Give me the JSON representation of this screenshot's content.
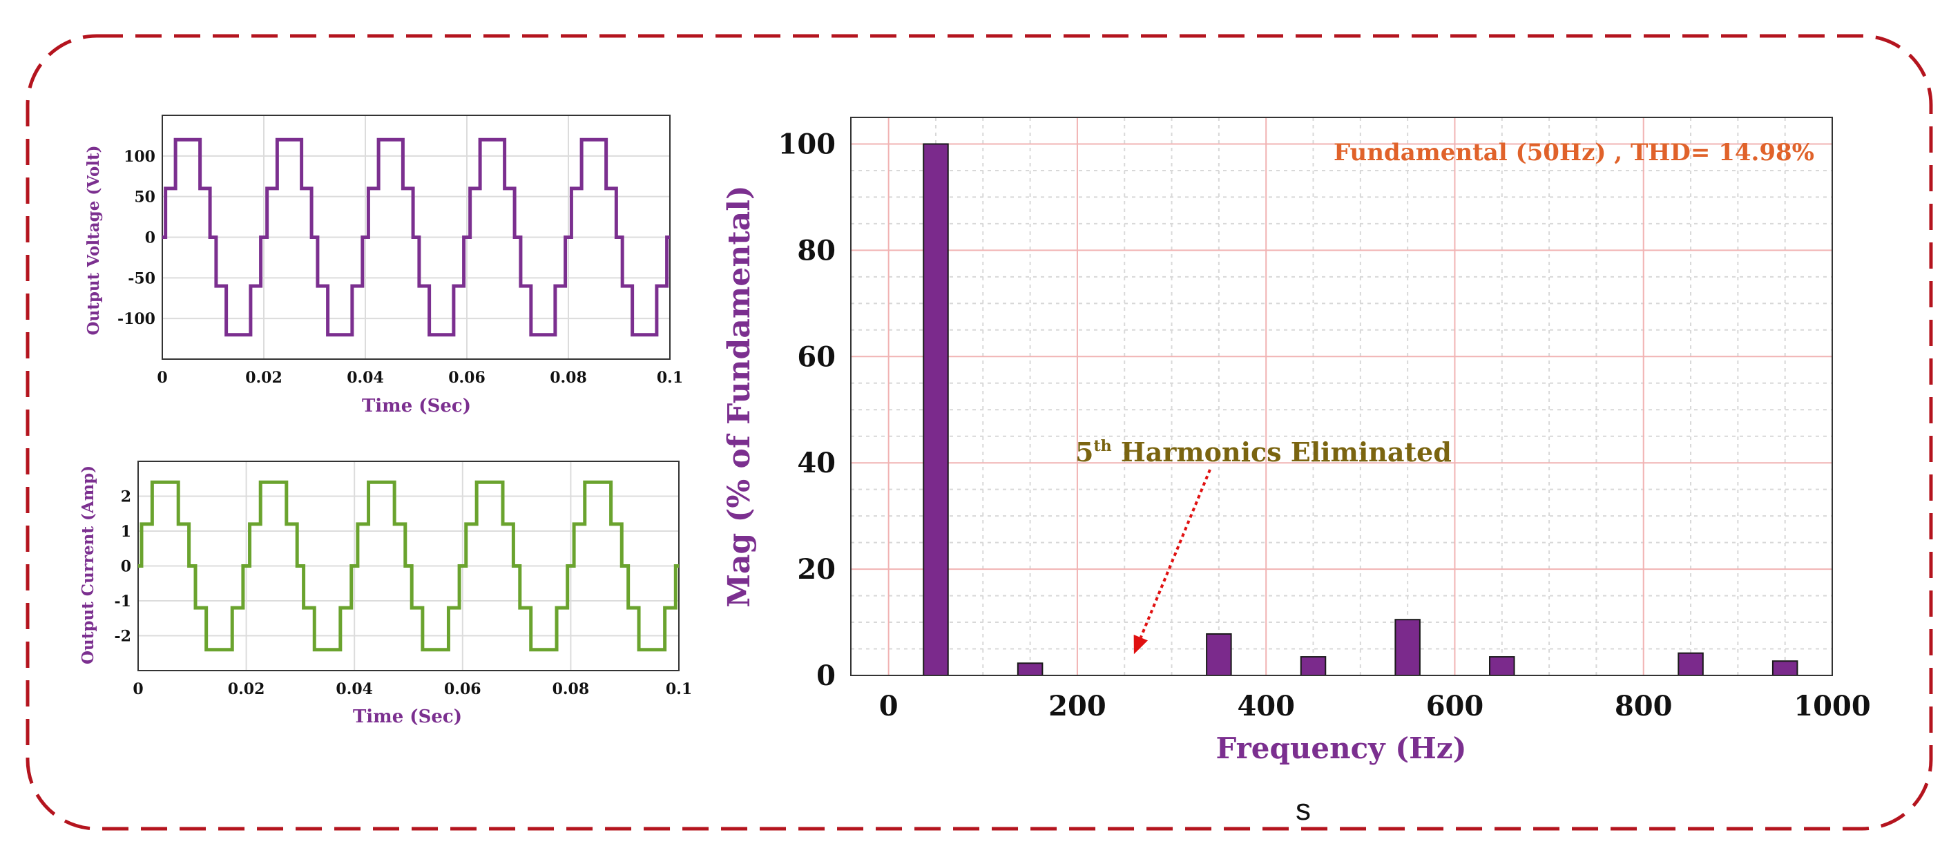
{
  "colors": {
    "frame": "#b4141e",
    "voltage": "#7b2f8f",
    "current": "#6aa32e",
    "bar_fill": "#7b2a8c",
    "axis_label": "#7b2f8f",
    "fundamental_text": "#e0622a",
    "annotation_text": "#7a6410",
    "arrow": "#e01010",
    "grid_major": "#f1b3b3",
    "grid_minor": "#d8d8d8"
  },
  "stray_text": "s",
  "chart_data": [
    {
      "id": "voltage",
      "type": "line",
      "xlabel": "Time (Sec)",
      "ylabel": "Output Voltage (Volt)",
      "xlim": [
        0,
        0.1
      ],
      "ylim": [
        -150,
        150
      ],
      "xticks": [
        0,
        0.02,
        0.04,
        0.06,
        0.08,
        0.1
      ],
      "xtick_labels": [
        "0",
        "0.02",
        "0.04",
        "0.06",
        "0.08",
        "0.1"
      ],
      "yticks": [
        100,
        50,
        0,
        -50,
        -100
      ],
      "ytick_labels": [
        "100",
        "50",
        "0",
        "-50",
        "-100"
      ],
      "waveform": {
        "period": 0.02,
        "cycles": 5,
        "levels": [
          0,
          60,
          120
        ],
        "switching_fraction": [
          0.06,
          0.26
        ]
      }
    },
    {
      "id": "current",
      "type": "line",
      "xlabel": "Time (Sec)",
      "ylabel": "Output Current (Amp)",
      "xlim": [
        0,
        0.1
      ],
      "ylim": [
        -3,
        3
      ],
      "xticks": [
        0,
        0.02,
        0.04,
        0.06,
        0.08,
        0.1
      ],
      "xtick_labels": [
        "0",
        "0.02",
        "0.04",
        "0.06",
        "0.08",
        "0.1"
      ],
      "yticks": [
        2,
        1,
        0,
        -1,
        -2
      ],
      "ytick_labels": [
        "2",
        "1",
        "0",
        "-1",
        "-2"
      ],
      "waveform": {
        "period": 0.02,
        "cycles": 5,
        "levels": [
          0,
          1.2,
          2.4
        ],
        "switching_fraction": [
          0.06,
          0.26
        ]
      }
    },
    {
      "id": "spectrum",
      "type": "bar",
      "title": "Fundamental (50Hz) , THD= 14.98%",
      "xlabel": "Frequency (Hz)",
      "ylabel": "Mag (% of Fundamental)",
      "xlim": [
        -40,
        1000
      ],
      "ylim": [
        0,
        105
      ],
      "xticks": [
        0,
        200,
        400,
        600,
        800,
        1000
      ],
      "xtick_labels": [
        "0",
        "200",
        "400",
        "600",
        "800",
        "1000"
      ],
      "yticks": [
        0,
        20,
        40,
        60,
        80,
        100
      ],
      "ytick_labels": [
        "0",
        "20",
        "40",
        "60",
        "80",
        "100"
      ],
      "bar_width_hz": 26,
      "x": [
        50,
        150,
        350,
        450,
        550,
        650,
        850,
        950
      ],
      "values": [
        100,
        2.3,
        7.8,
        3.5,
        10.5,
        3.5,
        4.2,
        2.7
      ],
      "annotation": {
        "prefix": "5",
        "superscript": "th",
        "text": " Harmonics Eliminated",
        "target_x": 260,
        "target_y": 4
      }
    }
  ]
}
